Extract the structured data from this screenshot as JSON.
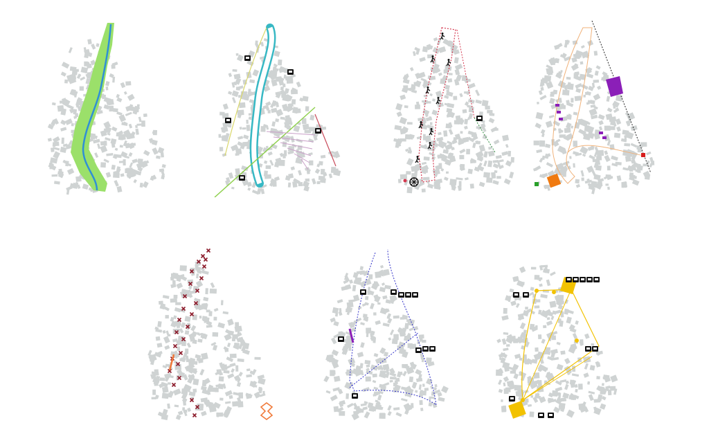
{
  "figure": {
    "background": "#ffffff",
    "panels": [
      {
        "id": "river-corridor",
        "river_color": "#2f8fd6",
        "buffer_color": "#9be06a"
      },
      {
        "id": "transport-network",
        "channel_color": "#37b8c4",
        "road_colors": [
          "#8fd14f",
          "#d9d76a",
          "#c94a5a",
          "#c9a0c8"
        ],
        "icon": "bus-stop-icon"
      },
      {
        "id": "walking-trails",
        "route_color": "#d4384f",
        "secondary_route_color": "#2e8b3e",
        "icons": [
          "hiker-icon",
          "bike-icon",
          "ferris-wheel-icon",
          "bus-stop-icon"
        ]
      },
      {
        "id": "land-use",
        "outline_color": "#f0b27a",
        "fill_colors": [
          "#8b1fb8",
          "#f07a10",
          "#2aa02a",
          "#d81e1e"
        ],
        "rail_color": "#222222"
      },
      {
        "id": "barriers",
        "cross_color": "#8b1a2a",
        "accent_color": "#f07a3a"
      },
      {
        "id": "activity-routes",
        "route_color": "#2d2dc8",
        "accent_color": "#8b1fb8",
        "icons": [
          "picnic-icon",
          "people-icon",
          "shop-icon"
        ]
      },
      {
        "id": "service-network",
        "route_color": "#f2c200",
        "icons": [
          "checkbox-icon",
          "stall-icon",
          "cutlery-icon",
          "beer-icon",
          "location-pin-icon",
          "people-icon"
        ]
      }
    ]
  }
}
